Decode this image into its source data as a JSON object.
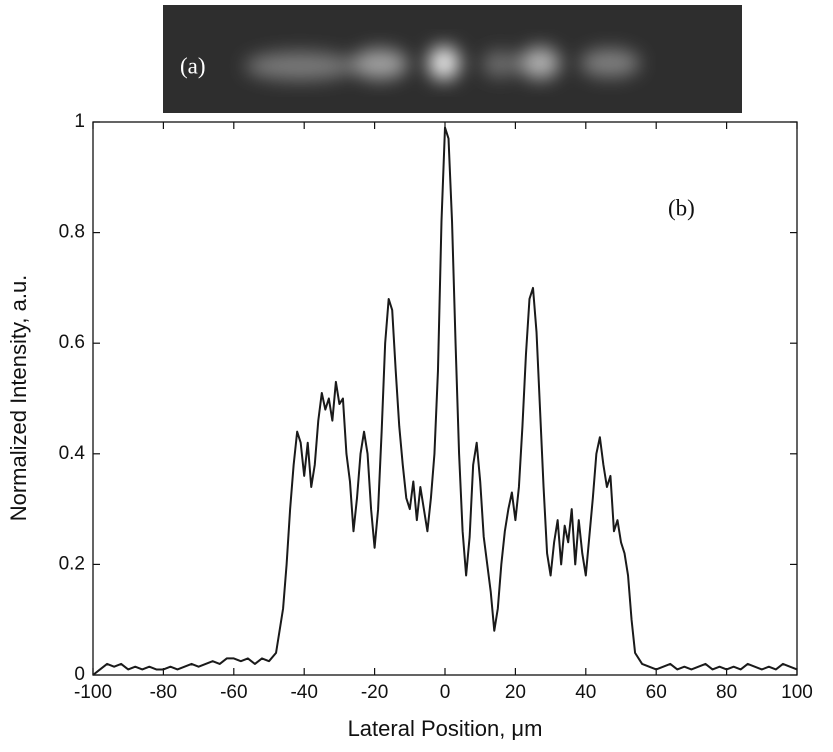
{
  "chart_data": {
    "type": "line",
    "panel_labels": [
      "(a)",
      "(b)"
    ],
    "xlabel": "Lateral Position, μm",
    "ylabel": "Normalized Intensity, a.u.",
    "color": "#1a1a1a",
    "xlim": [
      -100,
      100
    ],
    "xticks": [
      -100,
      -80,
      -60,
      -40,
      -20,
      0,
      20,
      40,
      60,
      80,
      100
    ],
    "ylim": [
      0,
      1
    ],
    "yticks": [
      0,
      0.2,
      0.4,
      0.6,
      0.8,
      1
    ],
    "x": [
      -100,
      -98,
      -96,
      -94,
      -92,
      -90,
      -88,
      -86,
      -84,
      -82,
      -80,
      -78,
      -76,
      -74,
      -72,
      -70,
      -68,
      -66,
      -64,
      -62,
      -60,
      -58,
      -56,
      -54,
      -52,
      -50,
      -48,
      -46,
      -45,
      -44,
      -43,
      -42,
      -41,
      -40,
      -39,
      -38,
      -37,
      -36,
      -35,
      -34,
      -33,
      -32,
      -31,
      -30,
      -29,
      -28,
      -27,
      -26,
      -25,
      -24,
      -23,
      -22,
      -21,
      -20,
      -19,
      -18,
      -17,
      -16,
      -15,
      -14,
      -13,
      -12,
      -11,
      -10,
      -9,
      -8,
      -7,
      -6,
      -5,
      -4,
      -3,
      -2,
      -1,
      0,
      1,
      2,
      3,
      4,
      5,
      6,
      7,
      8,
      9,
      10,
      11,
      12,
      13,
      14,
      15,
      16,
      17,
      18,
      19,
      20,
      21,
      22,
      23,
      24,
      25,
      26,
      27,
      28,
      29,
      30,
      31,
      32,
      33,
      34,
      35,
      36,
      37,
      38,
      39,
      40,
      41,
      42,
      43,
      44,
      45,
      46,
      47,
      48,
      49,
      50,
      51,
      52,
      53,
      54,
      56,
      58,
      60,
      62,
      64,
      66,
      68,
      70,
      72,
      74,
      76,
      78,
      80,
      82,
      84,
      86,
      88,
      90,
      92,
      94,
      96,
      98,
      100
    ],
    "values": [
      0,
      0.01,
      0.02,
      0.015,
      0.02,
      0.01,
      0.015,
      0.01,
      0.015,
      0.01,
      0.01,
      0.015,
      0.01,
      0.015,
      0.02,
      0.015,
      0.02,
      0.025,
      0.02,
      0.03,
      0.03,
      0.025,
      0.03,
      0.02,
      0.03,
      0.025,
      0.04,
      0.12,
      0.2,
      0.3,
      0.38,
      0.44,
      0.42,
      0.36,
      0.42,
      0.34,
      0.38,
      0.46,
      0.51,
      0.48,
      0.5,
      0.46,
      0.53,
      0.49,
      0.5,
      0.4,
      0.35,
      0.26,
      0.32,
      0.4,
      0.44,
      0.4,
      0.3,
      0.23,
      0.3,
      0.44,
      0.6,
      0.68,
      0.66,
      0.55,
      0.45,
      0.38,
      0.32,
      0.3,
      0.35,
      0.28,
      0.34,
      0.3,
      0.26,
      0.32,
      0.4,
      0.55,
      0.82,
      0.99,
      0.97,
      0.82,
      0.6,
      0.4,
      0.26,
      0.18,
      0.25,
      0.38,
      0.42,
      0.35,
      0.25,
      0.2,
      0.15,
      0.08,
      0.12,
      0.2,
      0.26,
      0.3,
      0.33,
      0.28,
      0.34,
      0.45,
      0.58,
      0.68,
      0.7,
      0.62,
      0.48,
      0.34,
      0.22,
      0.18,
      0.24,
      0.28,
      0.2,
      0.27,
      0.24,
      0.3,
      0.2,
      0.28,
      0.22,
      0.18,
      0.25,
      0.32,
      0.4,
      0.43,
      0.38,
      0.34,
      0.36,
      0.26,
      0.28,
      0.24,
      0.22,
      0.18,
      0.1,
      0.04,
      0.02,
      0.015,
      0.01,
      0.015,
      0.02,
      0.01,
      0.015,
      0.01,
      0.015,
      0.02,
      0.01,
      0.015,
      0.01,
      0.015,
      0.01,
      0.02,
      0.015,
      0.01,
      0.015,
      0.01,
      0.02,
      0.015,
      0.01
    ]
  }
}
